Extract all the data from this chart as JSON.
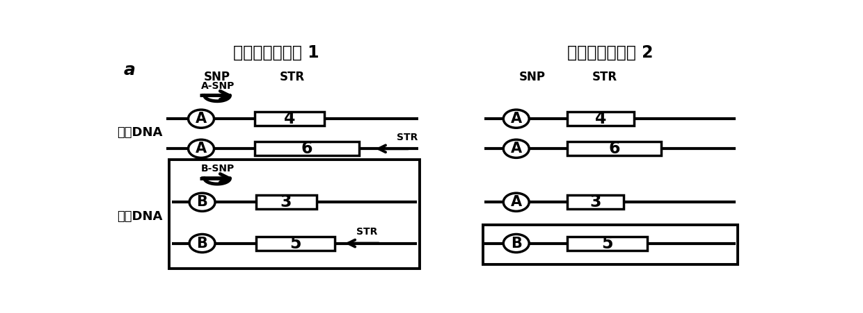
{
  "title1": "有效信息基因型 1",
  "title2": "有效信息基因型 2",
  "label_a": "a",
  "snp_label": "SNP",
  "str_label": "STR",
  "major_dna": "主要DNA",
  "minor_dna": "次要DNA",
  "bg_color": "#ffffff"
}
